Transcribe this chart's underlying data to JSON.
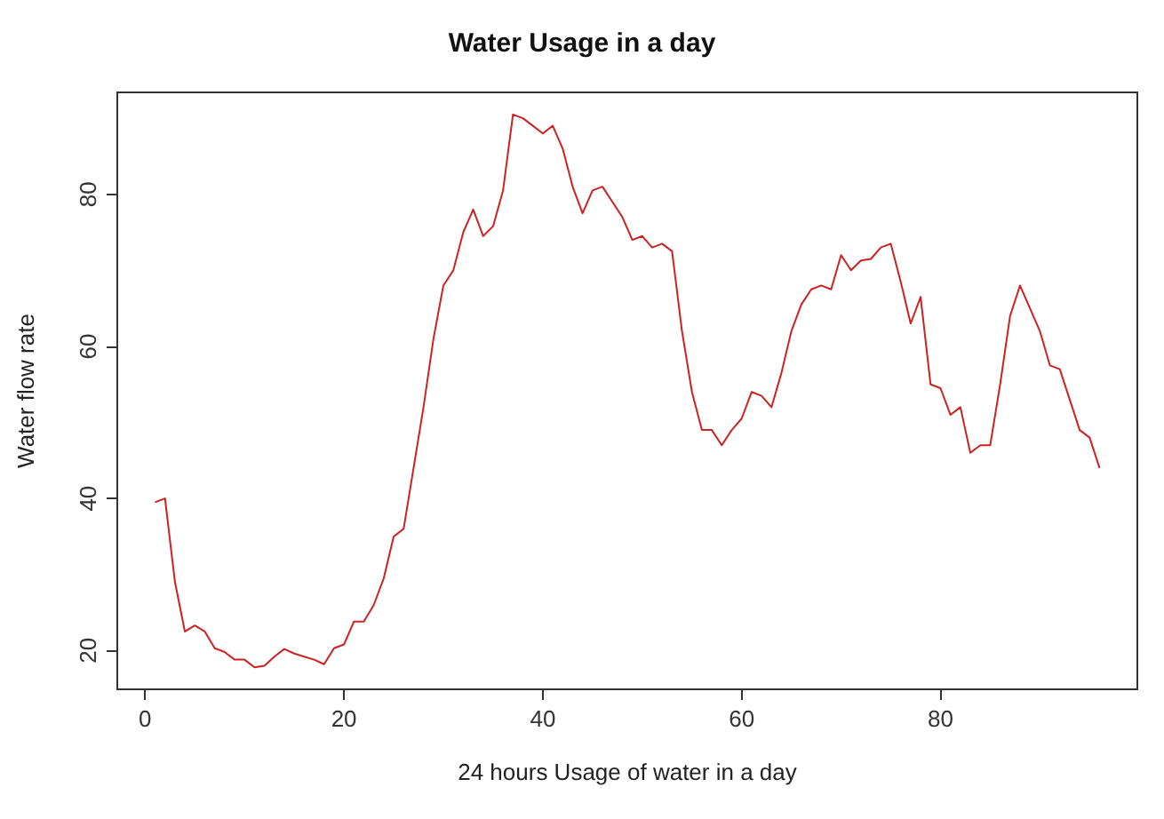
{
  "chart_data": {
    "type": "line",
    "title": "Water Usage in a day",
    "xlabel": "24 hours Usage of water in a day",
    "ylabel": "Water flow rate",
    "x": [
      1,
      2,
      3,
      4,
      5,
      6,
      7,
      8,
      9,
      10,
      11,
      12,
      13,
      14,
      15,
      16,
      17,
      18,
      19,
      20,
      21,
      22,
      23,
      24,
      25,
      26,
      27,
      28,
      29,
      30,
      31,
      32,
      33,
      34,
      35,
      36,
      37,
      38,
      39,
      40,
      41,
      42,
      43,
      44,
      45,
      46,
      47,
      48,
      49,
      50,
      51,
      52,
      53,
      54,
      55,
      56,
      57,
      58,
      59,
      60,
      61,
      62,
      63,
      64,
      65,
      66,
      67,
      68,
      69,
      70,
      71,
      72,
      73,
      74,
      75,
      76,
      77,
      78,
      79,
      80,
      81,
      82,
      83,
      84,
      85,
      86,
      87,
      88,
      89,
      90,
      91,
      92,
      93,
      94,
      95,
      96
    ],
    "series": [
      {
        "color": "#cc2222",
        "values": [
          39.5,
          40,
          29,
          22.5,
          23.3,
          22.5,
          20.3,
          19.8,
          18.8,
          18.8,
          17.8,
          18,
          19.2,
          20.2,
          19.6,
          19.2,
          18.8,
          18.2,
          20.3,
          20.8,
          23.8,
          23.8,
          26,
          29.5,
          35,
          36,
          44,
          52,
          61,
          68,
          70,
          75,
          78,
          74.5,
          75.8,
          80.5,
          90.5,
          90,
          89,
          88,
          89,
          86,
          81,
          77.5,
          80.5,
          81,
          79,
          77,
          74,
          74.5,
          73,
          73.5,
          72.5,
          62,
          54,
          49,
          49,
          47,
          49,
          50.5,
          54,
          53.5,
          52,
          56.5,
          62,
          65.5,
          67.5,
          68,
          67.5,
          72,
          70,
          71.3,
          71.5,
          73,
          73.5,
          68.5,
          63,
          66.5,
          55,
          54.5,
          51,
          52,
          46,
          47,
          47,
          55,
          64,
          68,
          65,
          62,
          57.5,
          57,
          53,
          49,
          48,
          44
        ]
      }
    ],
    "xlim": [
      -2.8,
      99.8
    ],
    "ylim": [
      14.9,
      93.4
    ],
    "xticks": [
      0,
      20,
      40,
      60,
      80
    ],
    "yticks": [
      20,
      40,
      60,
      80
    ],
    "grid": false,
    "marker": "none",
    "line_style": "solid"
  }
}
